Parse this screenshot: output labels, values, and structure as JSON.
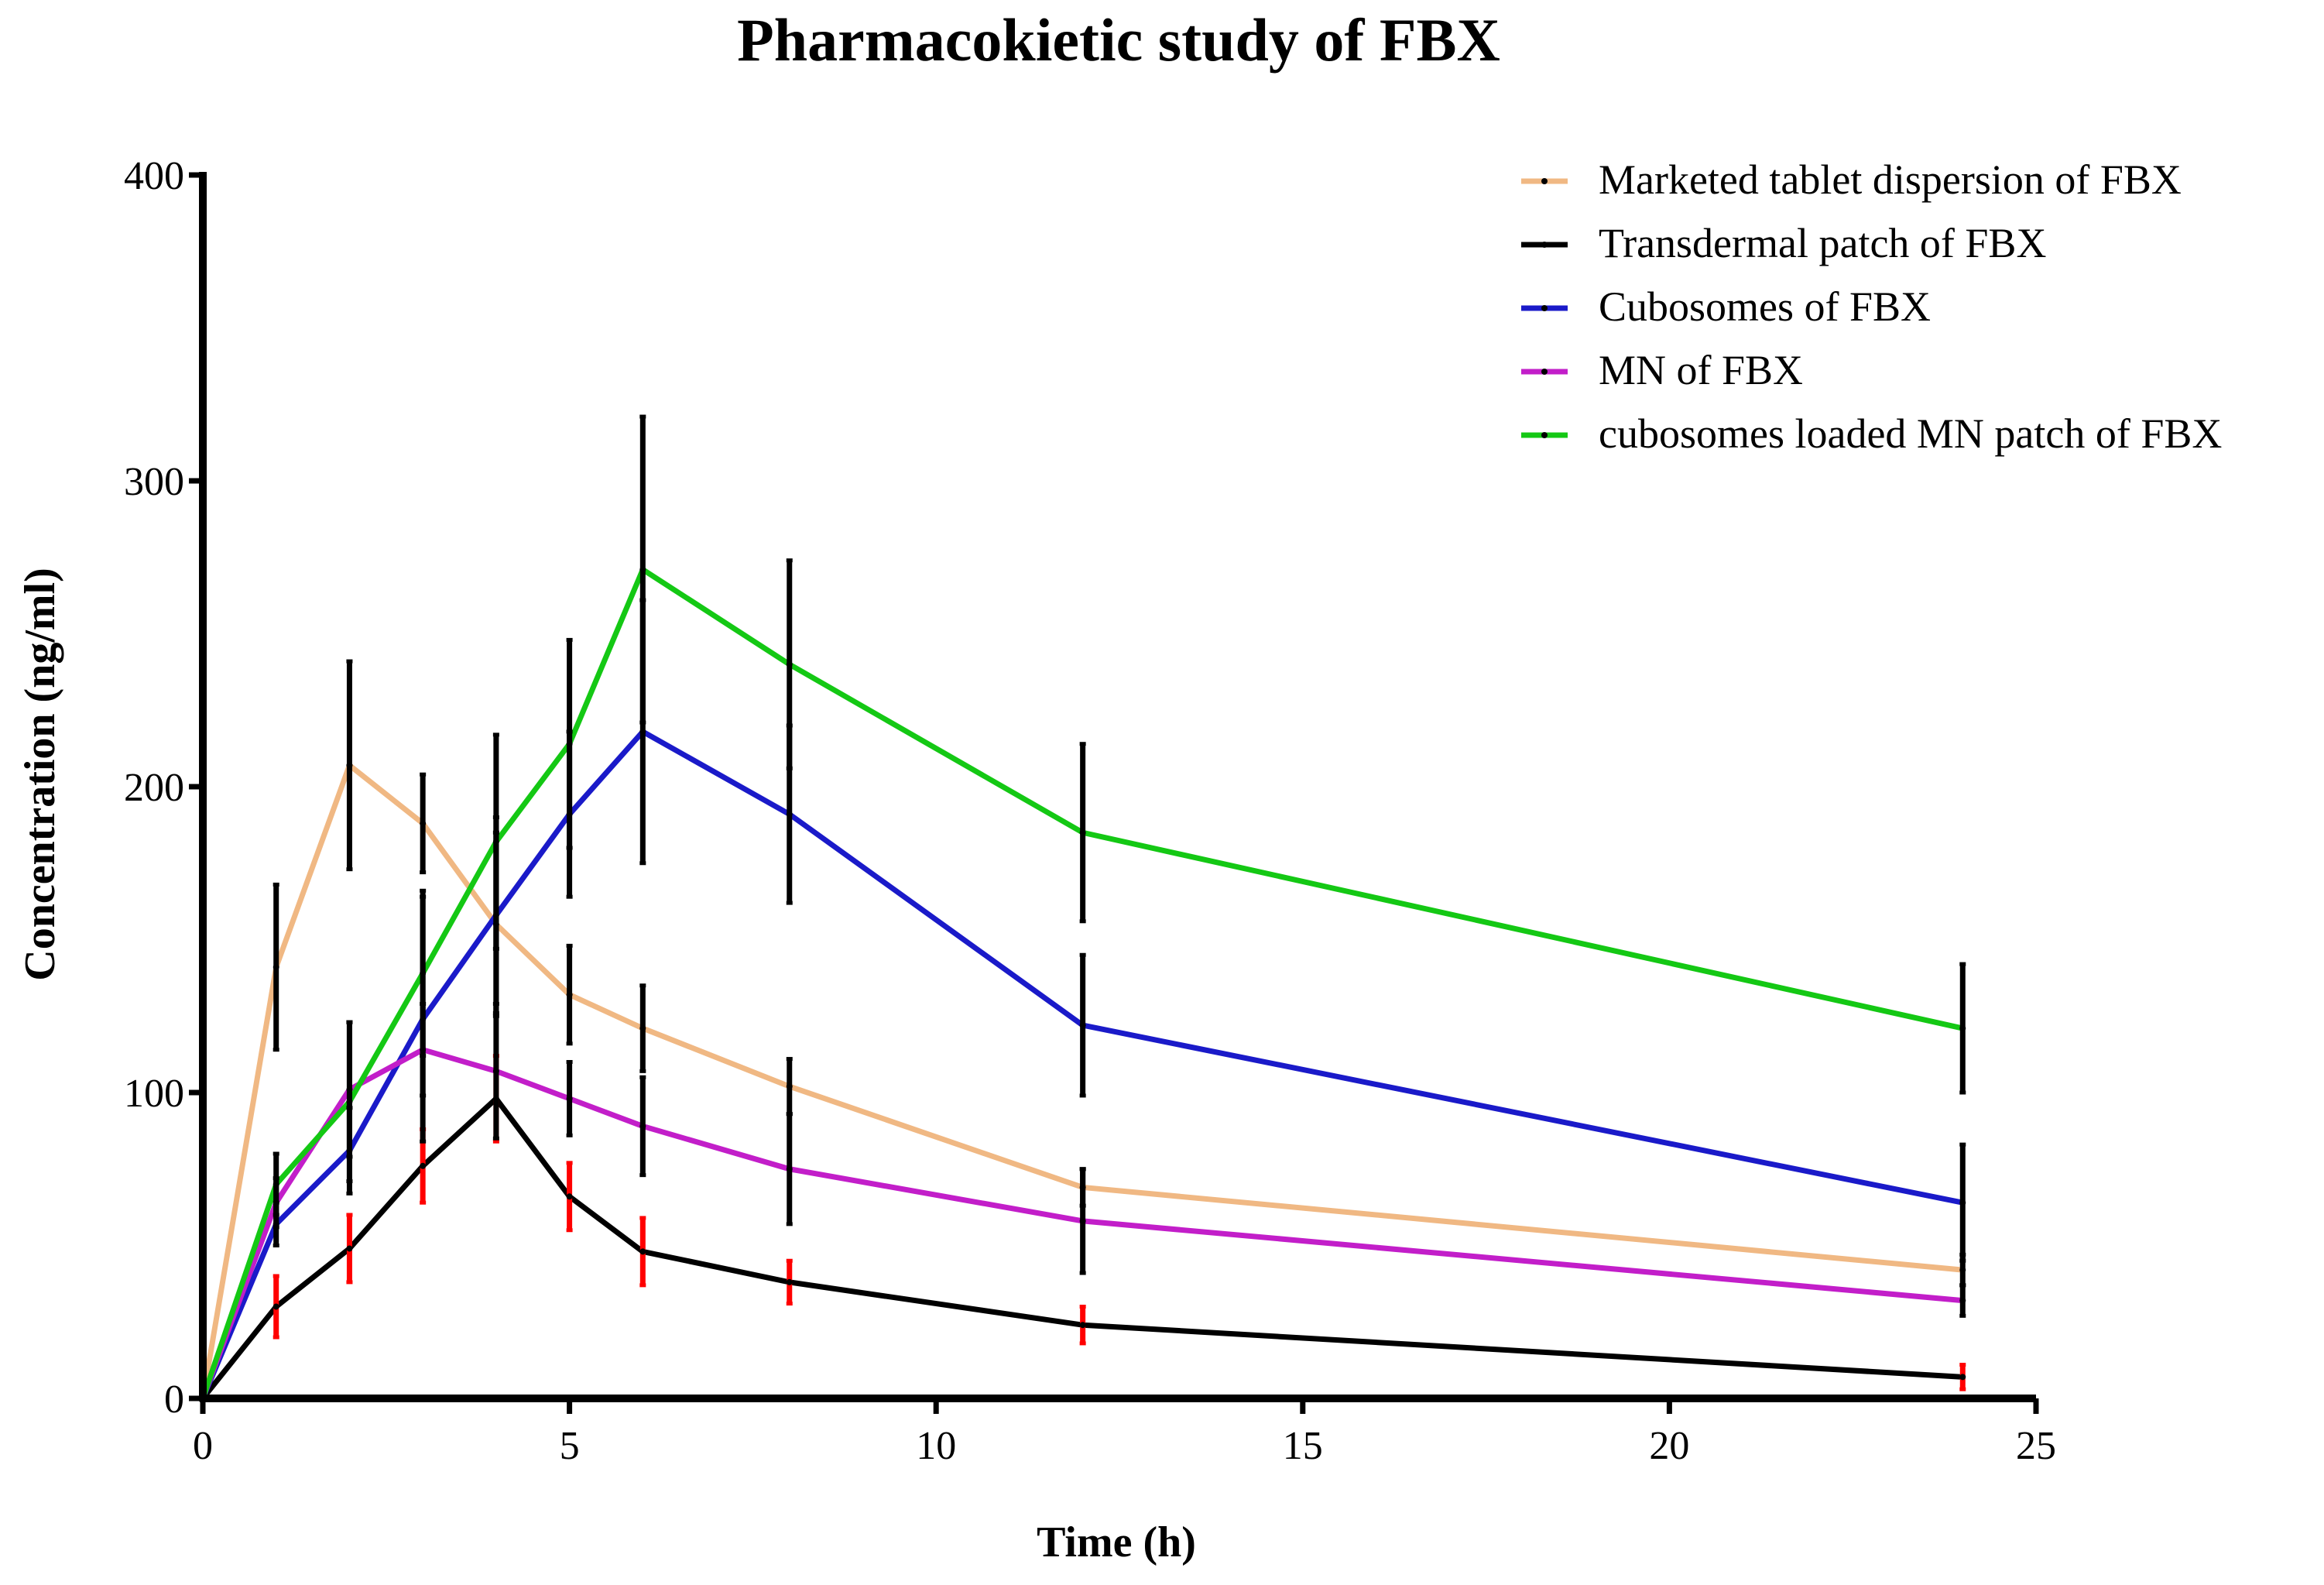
{
  "chart_data": {
    "type": "line",
    "title": "Pharmacokietic study of FBX",
    "xlabel": "Time (h)",
    "ylabel": "Concentration (ng/ml)",
    "xlim": [
      0,
      25
    ],
    "ylim": [
      0,
      400
    ],
    "xticks": [
      0,
      5,
      10,
      15,
      20,
      25
    ],
    "yticks": [
      0,
      100,
      200,
      300,
      400
    ],
    "legend_position": "top-right",
    "x": [
      0,
      1,
      2,
      3,
      4,
      5,
      6,
      8,
      12,
      24
    ],
    "series": [
      {
        "name": "Marketed tablet dispersion of FBX",
        "color": "#f0b883",
        "errorbar_color": "#000000",
        "values": [
          0,
          141,
          207,
          188,
          155,
          132,
          121,
          102,
          69,
          42
        ],
        "errors": [
          0,
          27,
          34,
          16,
          30,
          16,
          14,
          9,
          6,
          5
        ]
      },
      {
        "name": "Transdermal patch of FBX",
        "color": "#000000",
        "errorbar_color": "#ff0000",
        "values": [
          0,
          30,
          49,
          76,
          98,
          66,
          48,
          38,
          24,
          7
        ],
        "errors": [
          0,
          10,
          11,
          12,
          14,
          11,
          11,
          7,
          6,
          4
        ]
      },
      {
        "name": "Cubosomes of FBX",
        "color": "#1a1ac9",
        "errorbar_color": "#000000",
        "values": [
          0,
          57,
          81,
          124,
          158,
          191,
          218,
          191,
          122,
          64
        ],
        "errors": [
          0,
          7,
          14,
          40,
          32,
          27,
          43,
          29,
          23,
          19
        ]
      },
      {
        "name": "MN of FBX",
        "color": "#c21ec9",
        "errorbar_color": "#000000",
        "values": [
          0,
          64,
          101,
          114,
          107,
          98,
          89,
          75,
          58,
          32
        ],
        "errors": [
          0,
          8,
          22,
          15,
          22,
          12,
          16,
          18,
          17,
          5
        ]
      },
      {
        "name": "cubosomes loaded MN patch of FBX",
        "color": "#14c814",
        "errorbar_color": "#000000",
        "values": [
          0,
          70,
          97,
          139,
          182,
          214,
          271,
          240,
          185,
          121
        ],
        "errors": [
          0,
          10,
          26,
          27,
          35,
          34,
          50,
          34,
          29,
          21
        ]
      }
    ]
  }
}
